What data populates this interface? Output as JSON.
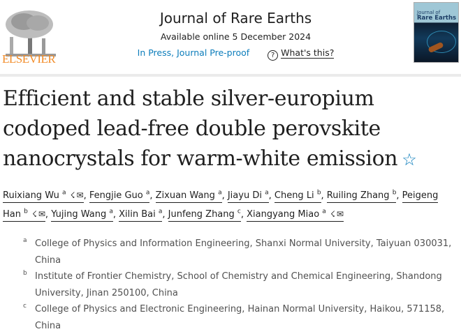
{
  "publisher": {
    "name": "ELSEVIER",
    "color": "#f28c28"
  },
  "journal": {
    "title": "Journal of Rare Earths",
    "available": "Available online 5 December 2024",
    "status": "In Press, Journal Pre-proof",
    "help_icon": "question-circle-icon",
    "help_link": "What's this?",
    "cover_title_1": "Journal of",
    "cover_title_2": "Rare Earths"
  },
  "article": {
    "title": "Efficient and stable silver-europium codoped lead-free double perovskite nanocrystals for warm-white emission",
    "star_icon": "☆"
  },
  "authors": [
    {
      "name": "Ruixiang Wu",
      "aff": "a",
      "icons": true
    },
    {
      "name": "Fengjie Guo",
      "aff": "a"
    },
    {
      "name": "Zixuan Wang",
      "aff": "a"
    },
    {
      "name": "Jiayu Di",
      "aff": "a"
    },
    {
      "name": "Cheng Li",
      "aff": "b"
    },
    {
      "name": "Ruiling Zhang",
      "aff": "b"
    },
    {
      "name": "Peigeng Han",
      "aff": "b",
      "icons": true
    },
    {
      "name": "Yujing Wang",
      "aff": "a"
    },
    {
      "name": "Xilin Bai",
      "aff": "a"
    },
    {
      "name": "Junfeng Zhang",
      "aff": "c"
    },
    {
      "name": "Xiangyang Miao",
      "aff": "a",
      "icons": true
    }
  ],
  "affiliations": [
    {
      "label": "a",
      "text": "College of Physics and Information Engineering, Shanxi Normal University, Taiyuan 030031, China"
    },
    {
      "label": "b",
      "text": "Institute of Frontier Chemistry, School of Chemistry and Chemical Engineering, Shandong University, Jinan 250100, China"
    },
    {
      "label": "c",
      "text": "College of Physics and Electronic Engineering, Hainan Normal University, Haikou, 571158, China"
    }
  ],
  "colors": {
    "link": "#0c7dbb",
    "text": "#1f1f1f"
  }
}
